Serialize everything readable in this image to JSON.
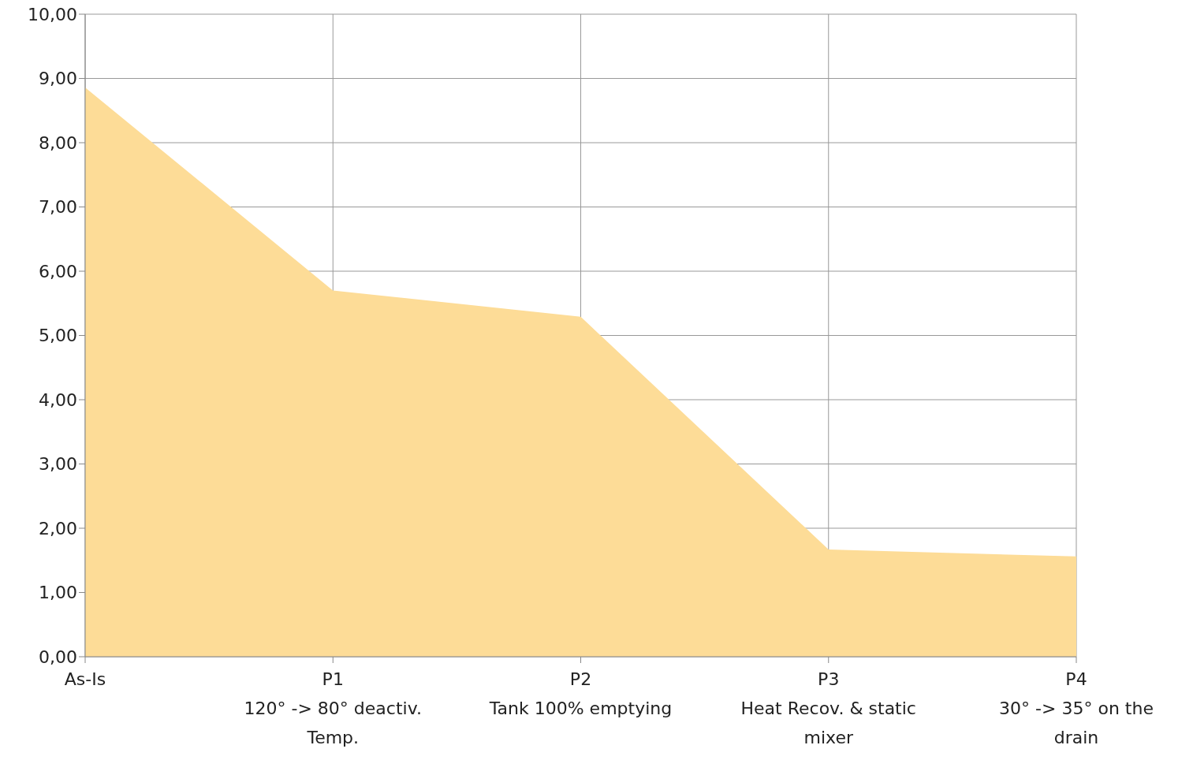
{
  "chart_data": {
    "type": "area",
    "categories": [
      "As-Is",
      "P1\n120° -> 80° deactiv. Temp.",
      "P2\nTank 100% emptying",
      "P3\nHeat Recov. & static mixer",
      "P4\n30° -> 35° on the drain"
    ],
    "values": [
      8.86,
      5.7,
      5.29,
      1.67,
      1.56
    ],
    "color": "#fddc97",
    "ylim": [
      0,
      10
    ],
    "yticks": [
      {
        "value": 0,
        "label": "0,00"
      },
      {
        "value": 1,
        "label": "1,00"
      },
      {
        "value": 2,
        "label": "2,00"
      },
      {
        "value": 3,
        "label": "3,00"
      },
      {
        "value": 4,
        "label": "4,00"
      },
      {
        "value": 5,
        "label": "5,00"
      },
      {
        "value": 6,
        "label": "6,00"
      },
      {
        "value": 7,
        "label": "7,00"
      },
      {
        "value": 8,
        "label": "8,00"
      },
      {
        "value": 9,
        "label": "9,00"
      },
      {
        "value": 10,
        "label": "10,00"
      }
    ],
    "grid": true
  }
}
